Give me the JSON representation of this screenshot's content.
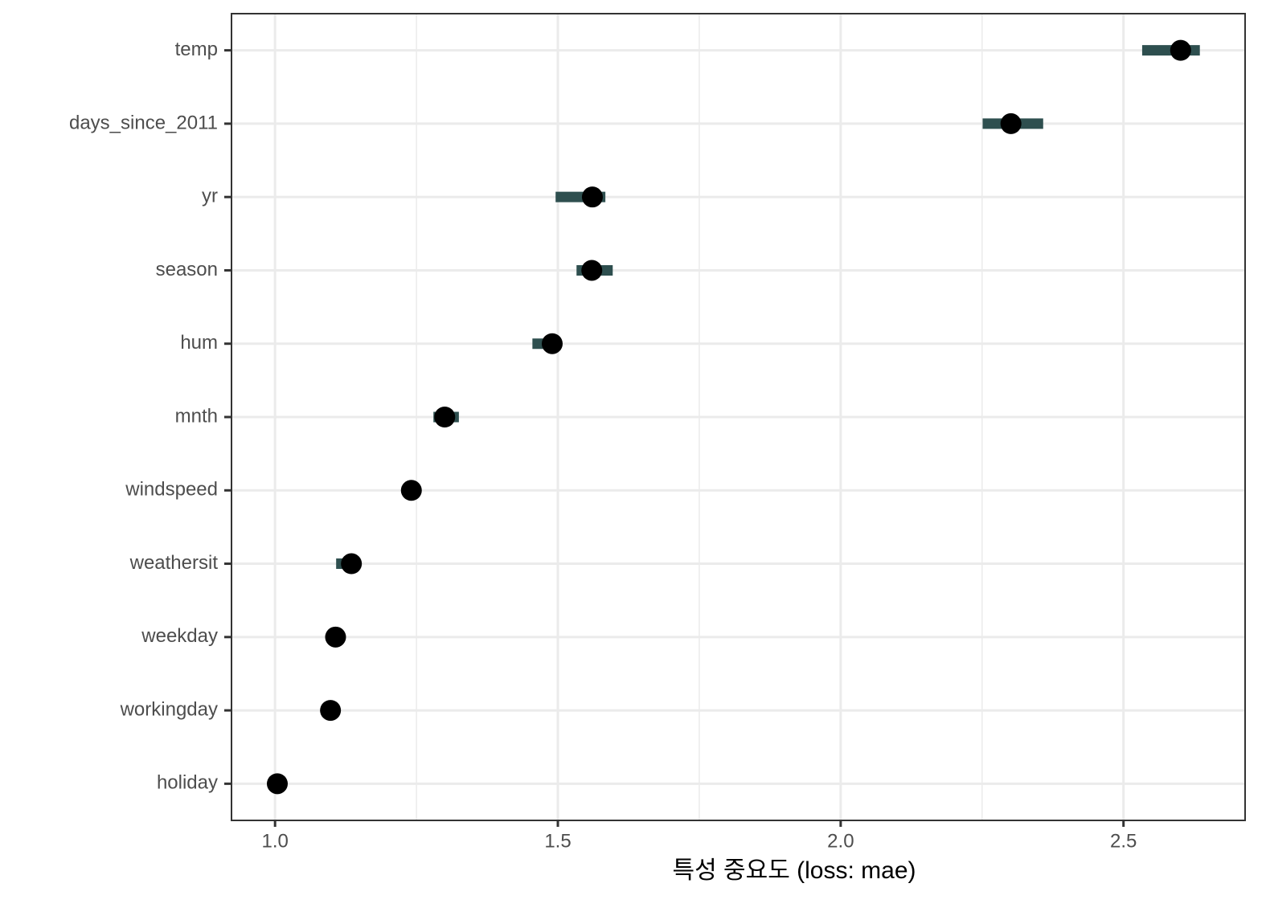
{
  "chart_data": {
    "type": "dot_interval",
    "xlabel": "특성 중요도  (loss: mae)",
    "categories": [
      "temp",
      "days_since_2011",
      "yr",
      "season",
      "hum",
      "mnth",
      "windspeed",
      "weathersit",
      "weekday",
      "workingday",
      "holiday"
    ],
    "values": [
      2.601,
      2.301,
      1.561,
      1.56,
      1.49,
      1.3,
      1.241,
      1.135,
      1.107,
      1.098,
      1.004
    ],
    "lower": [
      2.533,
      2.251,
      1.496,
      1.533,
      1.455,
      1.28,
      1.238,
      1.108,
      1.105,
      1.096,
      1.003
    ],
    "upper": [
      2.635,
      2.358,
      1.584,
      1.597,
      1.493,
      1.325,
      1.244,
      1.137,
      1.109,
      1.1,
      1.005
    ],
    "interval_color": "#2e4f4f",
    "point_color": "#000000",
    "xlim": [
      0.923,
      2.715
    ],
    "xticks": [
      {
        "value": 1,
        "label": "1.0"
      },
      {
        "value": 1.5,
        "label": "1.5"
      },
      {
        "value": 2,
        "label": "2.0"
      },
      {
        "value": 2.5,
        "label": "2.5"
      }
    ],
    "minor_xticks": [
      1.25,
      1.75,
      2.25
    ],
    "grid": true
  }
}
